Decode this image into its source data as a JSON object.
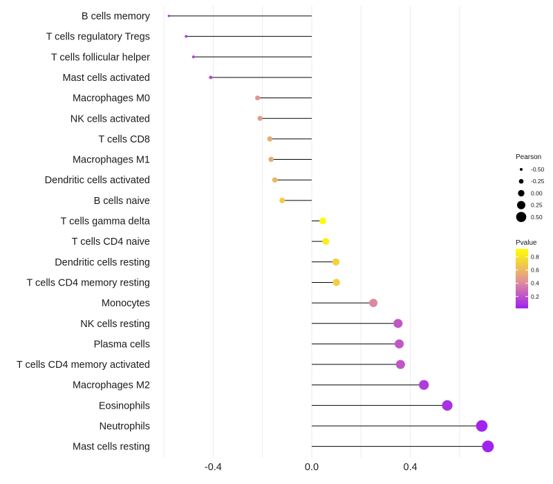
{
  "chart_data": {
    "type": "lollipop",
    "title": "",
    "xlabel": "",
    "ylabel": "",
    "xlim": [
      -0.6,
      0.77
    ],
    "x_ticks": [
      -0.4,
      0.0,
      0.4
    ],
    "x_tick_labels": [
      "-0.4",
      "0.0",
      "0.4"
    ],
    "grid": true,
    "categories": [
      "B cells memory",
      "T cells regulatory  Tregs",
      "T cells follicular helper",
      "Mast cells activated",
      "Macrophages M0",
      "NK cells activated",
      "T cells CD8",
      "Macrophages M1",
      "Dendritic cells activated",
      "B cells naive",
      "T cells gamma delta",
      "T cells CD4 naive",
      "Dendritic cells resting",
      "T cells CD4 memory resting",
      "Monocytes",
      "NK cells resting",
      "Plasma cells",
      "T cells CD4 memory activated",
      "Macrophages M2",
      "Eosinophils",
      "Neutrophils",
      "Mast cells resting"
    ],
    "pearson": [
      -0.58,
      -0.51,
      -0.48,
      -0.41,
      -0.22,
      -0.21,
      -0.17,
      -0.165,
      -0.15,
      -0.12,
      0.045,
      0.057,
      0.098,
      0.1,
      0.25,
      0.35,
      0.355,
      0.36,
      0.455,
      0.55,
      0.69,
      0.715
    ],
    "pvalue": [
      0.05,
      0.12,
      0.15,
      0.18,
      0.45,
      0.48,
      0.55,
      0.55,
      0.6,
      0.7,
      0.9,
      0.85,
      0.72,
      0.7,
      0.4,
      0.22,
      0.22,
      0.22,
      0.12,
      0.08,
      0.03,
      0.03
    ],
    "legend_size": {
      "title": "Pearson",
      "values": [
        -0.5,
        -0.25,
        0.0,
        0.25,
        0.5
      ],
      "labels": [
        "-0.50",
        "-0.25",
        "0.00",
        "0.25",
        "0.50"
      ]
    },
    "legend_color": {
      "title": "Pvalue",
      "range": [
        0.02,
        0.92
      ],
      "ticks": [
        0.8,
        0.6,
        0.4,
        0.2
      ],
      "tick_labels": [
        "0.8",
        "0.6",
        "0.4",
        "0.2"
      ],
      "low_color": "#a020f0",
      "mid_color": "#e0909a",
      "high_color": "#ffff00"
    },
    "legend_position": "right",
    "stem_color": "#000000",
    "grid_color": "#ebebeb"
  }
}
